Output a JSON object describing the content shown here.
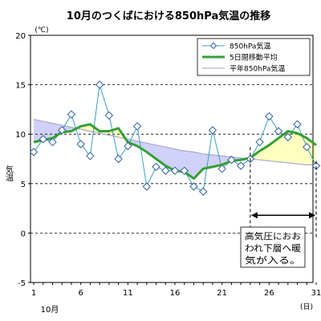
{
  "chart_data": {
    "type": "line",
    "title": "10月のつくばにおける850hPa気温の推移",
    "ylabel": "気温",
    "yunit": "(℃)",
    "xunit": "(日)",
    "month_label": "10月",
    "ylim": [
      -5,
      20
    ],
    "y_ticks": [
      "-5",
      "0",
      "5",
      "10",
      "15",
      "20"
    ],
    "xlim": [
      1,
      31
    ],
    "x_ticks": [
      "1",
      "6",
      "11",
      "16",
      "21",
      "26",
      "31"
    ],
    "grid": "dashed horizontal at 5, 10, 15",
    "legend_position": "top-right",
    "x": [
      1,
      2,
      3,
      4,
      5,
      6,
      7,
      8,
      9,
      10,
      11,
      12,
      13,
      14,
      15,
      16,
      17,
      18,
      19,
      20,
      21,
      22,
      23,
      24,
      25,
      26,
      27,
      28,
      29,
      30,
      31
    ],
    "series": [
      {
        "name": "850hPa気温",
        "values": [
          8.2,
          9.5,
          9.2,
          10.4,
          12.0,
          9.0,
          7.8,
          15.0,
          11.9,
          7.5,
          8.8,
          10.8,
          4.7,
          6.7,
          6.3,
          6.3,
          6.3,
          4.7,
          4.2,
          10.4,
          6.5,
          7.4,
          6.8,
          7.5,
          9.2,
          11.8,
          10.3,
          9.7,
          11.0,
          8.7,
          6.8
        ],
        "color": "#3a9ec2",
        "marker": "diamond"
      },
      {
        "name": "5日間移動平均",
        "values": [
          9.2,
          9.4,
          9.6,
          10.2,
          10.3,
          10.8,
          11.0,
          10.3,
          10.3,
          10.6,
          9.2,
          8.8,
          8.2,
          7.5,
          6.8,
          6.3,
          6.2,
          5.5,
          6.5,
          6.7,
          6.9,
          7.3,
          7.4,
          7.6,
          8.3,
          8.9,
          9.6,
          10.3,
          10.1,
          9.6,
          8.9
        ],
        "color": "#33a033"
      },
      {
        "name": "平年850hPa気温",
        "values": [
          11.5,
          11.3,
          11.1,
          10.9,
          10.7,
          10.5,
          10.3,
          10.1,
          9.9,
          9.7,
          9.5,
          9.3,
          9.1,
          8.9,
          8.7,
          8.5,
          8.3,
          8.2,
          8.0,
          7.9,
          7.8,
          7.7,
          7.6,
          7.5,
          7.4,
          7.3,
          7.2,
          7.1,
          7.0,
          6.9,
          6.9
        ],
        "color": "#b0b0d8"
      }
    ],
    "annotation": {
      "lines": [
        "高気圧におお",
        "われ下層へ暖",
        "気が入る。"
      ],
      "x_range": [
        24,
        31
      ],
      "y_arrow": 1.8
    },
    "colors": {
      "above_normal_fill": "#ffffc0",
      "below_normal_fill": "#d0d0f8",
      "normal_line": "#a8a8d0"
    }
  }
}
